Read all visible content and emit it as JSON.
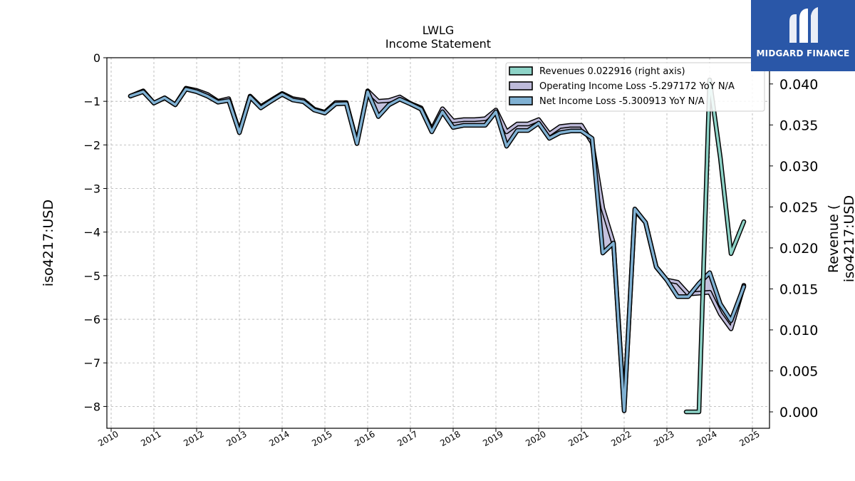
{
  "brand": {
    "name": "MIDGARD FINANCE",
    "bg_color": "#2a57a8"
  },
  "chart_data": {
    "type": "line",
    "title": "LWLG",
    "subtitle": "Income Statement",
    "ylabel": "iso4217:USD",
    "ylabel_right": "Revenue (\niso4217:USD",
    "xlim": [
      2009.9,
      2025.4
    ],
    "ylim": [
      -8.5,
      0
    ],
    "ylim_right": [
      -0.002,
      0.0432
    ],
    "x_ticks": [
      2010,
      2011,
      2012,
      2013,
      2014,
      2015,
      2016,
      2017,
      2018,
      2019,
      2020,
      2021,
      2022,
      2023,
      2024,
      2025
    ],
    "x_tick_labels": [
      "2010",
      "2011",
      "2012",
      "2013",
      "2014",
      "2015",
      "2016",
      "2017",
      "2018",
      "2019",
      "2020",
      "2021",
      "2022",
      "2023",
      "2024",
      "2025"
    ],
    "y_ticks": [
      0,
      -1,
      -2,
      -3,
      -4,
      -5,
      -6,
      -7,
      -8
    ],
    "y_tick_labels": [
      "0",
      "−1",
      "−2",
      "−3",
      "−4",
      "−5",
      "−6",
      "−7",
      "−8"
    ],
    "y_ticks_right": [
      0,
      0.005,
      0.01,
      0.015,
      0.02,
      0.025,
      0.03,
      0.035,
      0.04
    ],
    "y_tick_labels_right": [
      "0.000",
      "0.005",
      "0.010",
      "0.015",
      "0.020",
      "0.025",
      "0.030",
      "0.035",
      "0.040"
    ],
    "grid": true,
    "legend_position": "top-right",
    "series": [
      {
        "name": "Revenues  0.022916 (right axis)",
        "axis": "right",
        "color": "#8dd3c7",
        "x": [
          2023.45,
          2023.75,
          2024.0,
          2024.25,
          2024.5,
          2024.8
        ],
        "y": [
          0.0,
          0.0,
          0.0405,
          0.031,
          0.0193,
          0.0232
        ]
      },
      {
        "name": "Operating Income Loss  -5.297172 YoY N/A",
        "axis": "left",
        "color": "#bebada",
        "x": [
          2010.45,
          2010.75,
          2011.0,
          2011.25,
          2011.5,
          2011.75,
          2012.0,
          2012.25,
          2012.5,
          2012.75,
          2013.0,
          2013.25,
          2013.5,
          2013.75,
          2014.0,
          2014.25,
          2014.5,
          2014.75,
          2015.0,
          2015.25,
          2015.5,
          2015.75,
          2016.0,
          2016.25,
          2016.5,
          2016.75,
          2017.0,
          2017.25,
          2017.5,
          2017.75,
          2018.0,
          2018.25,
          2018.5,
          2018.75,
          2019.0,
          2019.25,
          2019.5,
          2019.75,
          2020.0,
          2020.25,
          2020.5,
          2020.75,
          2021.0,
          2021.25,
          2021.5,
          2021.75,
          2022.0,
          2022.25,
          2022.5,
          2022.75,
          2023.0,
          2023.25,
          2023.5,
          2023.75,
          2024.0,
          2024.25,
          2024.5,
          2024.8
        ],
        "y": [
          -0.88,
          -0.76,
          -1.04,
          -0.92,
          -1.08,
          -0.7,
          -0.75,
          -0.84,
          -1.0,
          -0.94,
          -1.7,
          -0.88,
          -1.12,
          -0.97,
          -0.82,
          -0.94,
          -0.98,
          -1.18,
          -1.25,
          -1.03,
          -1.03,
          -1.95,
          -0.76,
          -1.0,
          -0.98,
          -0.9,
          -1.05,
          -1.15,
          -1.65,
          -1.17,
          -1.45,
          -1.42,
          -1.42,
          -1.4,
          -1.2,
          -1.7,
          -1.52,
          -1.52,
          -1.42,
          -1.75,
          -1.58,
          -1.55,
          -1.55,
          -1.95,
          -3.45,
          -4.25,
          -8.05,
          -3.5,
          -3.78,
          -4.8,
          -5.1,
          -5.15,
          -5.42,
          -5.4,
          -5.38,
          -5.88,
          -6.22,
          -5.22
        ]
      },
      {
        "name": "Net Income Loss  -5.300913 YoY N/A",
        "axis": "left",
        "color": "#80b1d3",
        "x": [
          2010.45,
          2010.75,
          2011.0,
          2011.25,
          2011.5,
          2011.75,
          2012.0,
          2012.25,
          2012.5,
          2012.75,
          2013.0,
          2013.25,
          2013.5,
          2013.75,
          2014.0,
          2014.25,
          2014.5,
          2014.75,
          2015.0,
          2015.25,
          2015.5,
          2015.75,
          2016.0,
          2016.25,
          2016.5,
          2016.75,
          2017.0,
          2017.25,
          2017.5,
          2017.75,
          2018.0,
          2018.25,
          2018.5,
          2018.75,
          2019.0,
          2019.25,
          2019.5,
          2019.75,
          2020.0,
          2020.25,
          2020.5,
          2020.75,
          2021.0,
          2021.25,
          2021.5,
          2021.75,
          2022.0,
          2022.25,
          2022.5,
          2022.75,
          2023.0,
          2023.25,
          2023.5,
          2023.75,
          2024.0,
          2024.25,
          2024.5,
          2024.8
        ],
        "y": [
          -0.88,
          -0.78,
          -1.04,
          -0.92,
          -1.08,
          -0.72,
          -0.78,
          -0.88,
          -1.02,
          -0.98,
          -1.72,
          -0.9,
          -1.15,
          -0.99,
          -0.84,
          -0.97,
          -1.01,
          -1.2,
          -1.27,
          -1.06,
          -1.05,
          -1.97,
          -0.78,
          -1.35,
          -1.08,
          -0.95,
          -1.06,
          -1.18,
          -1.7,
          -1.24,
          -1.6,
          -1.55,
          -1.55,
          -1.55,
          -1.24,
          -2.03,
          -1.67,
          -1.67,
          -1.5,
          -1.85,
          -1.72,
          -1.68,
          -1.68,
          -1.85,
          -4.48,
          -4.25,
          -8.1,
          -3.47,
          -3.78,
          -4.8,
          -5.1,
          -5.48,
          -5.48,
          -5.18,
          -4.93,
          -5.65,
          -6.03,
          -5.25
        ]
      }
    ]
  }
}
